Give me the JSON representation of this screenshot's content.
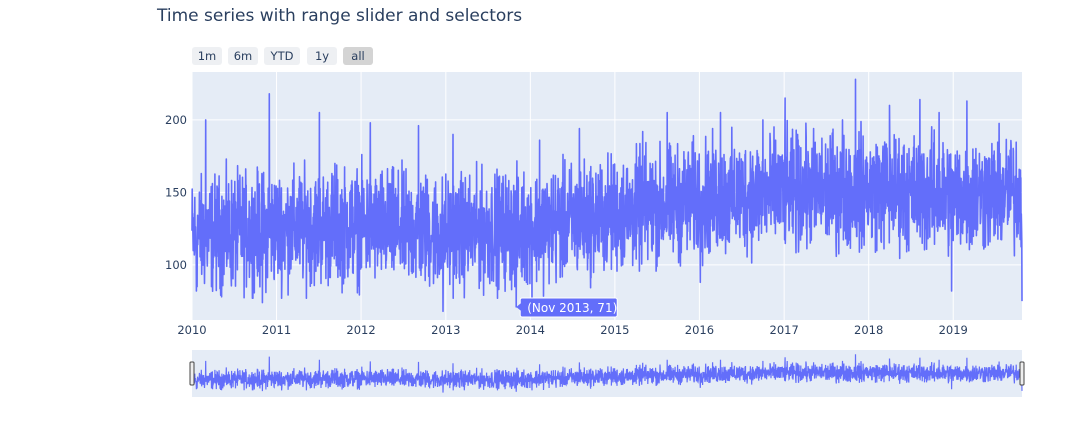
{
  "chart_data": {
    "type": "line",
    "title": "Time series with range slider and selectors",
    "x_range": [
      "2010-01-01",
      "2019-10-25"
    ],
    "ylim": [
      62,
      233
    ],
    "y_ticks": [
      100,
      150,
      200
    ],
    "x_ticks": [
      "2010",
      "2011",
      "2012",
      "2013",
      "2014",
      "2015",
      "2016",
      "2017",
      "2018",
      "2019"
    ],
    "grid": true,
    "line_color": "#636efa",
    "plot_bg": "#e5ecf6",
    "series": [
      {
        "anchors": [
          [
            "2010-01-01",
            120
          ],
          [
            "2011-01-01",
            125
          ],
          [
            "2012-01-01",
            127
          ],
          [
            "2013-01-01",
            122
          ],
          [
            "2014-01-01",
            125
          ],
          [
            "2015-01-01",
            135
          ],
          [
            "2016-01-01",
            145
          ],
          [
            "2017-01-01",
            150
          ],
          [
            "2018-01-01",
            152
          ],
          [
            "2019-01-01",
            148
          ],
          [
            "2019-10-25",
            150
          ]
        ],
        "spikes": [
          [
            "2010-01-20",
            82
          ],
          [
            "2010-03-01",
            200
          ],
          [
            "2010-11-01",
            74
          ],
          [
            "2010-12-01",
            218
          ],
          [
            "2011-09-10",
            170
          ],
          [
            "2011-07-05",
            205
          ],
          [
            "2012-02-10",
            198
          ],
          [
            "2012-09-05",
            196
          ],
          [
            "2012-12-20",
            68
          ],
          [
            "2013-02-01",
            190
          ],
          [
            "2013-11-01",
            71
          ],
          [
            "2014-02-10",
            186
          ],
          [
            "2014-08-01",
            194
          ],
          [
            "2015-05-01",
            192
          ],
          [
            "2015-08-15",
            205
          ],
          [
            "2016-01-05",
            88
          ],
          [
            "2016-04-01",
            205
          ],
          [
            "2016-10-01",
            200
          ],
          [
            "2017-01-05",
            215
          ],
          [
            "2017-09-10",
            200
          ],
          [
            "2017-11-05",
            228
          ],
          [
            "2018-04-01",
            210
          ],
          [
            "2018-08-10",
            214
          ],
          [
            "2018-11-01",
            205
          ],
          [
            "2018-12-25",
            82
          ],
          [
            "2019-03-01",
            213
          ],
          [
            "2019-10-25",
            75
          ]
        ]
      }
    ],
    "hover": {
      "label": "(Nov 2013, 71)",
      "x": "2013-11-01",
      "y": 71
    },
    "range_selector": {
      "buttons": [
        "1m",
        "6m",
        "YTD",
        "1y",
        "all"
      ],
      "active": "all"
    }
  }
}
